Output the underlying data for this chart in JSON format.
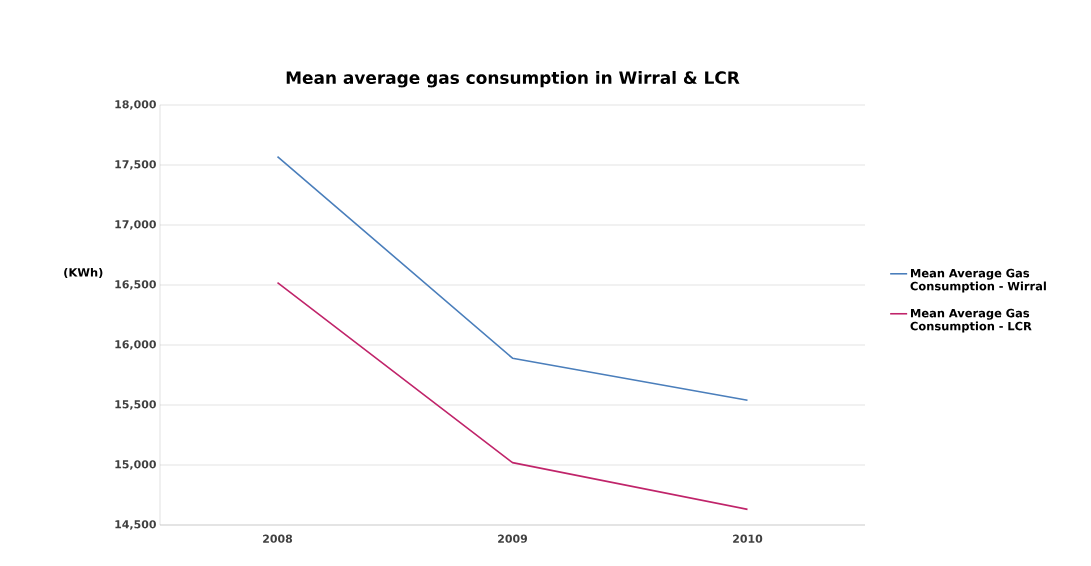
{
  "chart_data": {
    "type": "line",
    "title": "Mean average gas consumption in Wirral & LCR",
    "ylabel": "(KWh)",
    "categories": [
      "2008",
      "2009",
      "2010"
    ],
    "series": [
      {
        "name": "Mean Average Gas Consumption - Wirral",
        "color": "#4a7ebb",
        "values": [
          17570,
          15890,
          15540
        ]
      },
      {
        "name": "Mean Average Gas Consumption - LCR",
        "color": "#c0246a",
        "values": [
          16520,
          15020,
          14630
        ]
      }
    ],
    "ylim": [
      14500,
      18000
    ],
    "yticks": [
      {
        "value": 14500,
        "label": "14,500"
      },
      {
        "value": 15000,
        "label": "15,000"
      },
      {
        "value": 15500,
        "label": "15,500"
      },
      {
        "value": 16000,
        "label": "16,000"
      },
      {
        "value": 16500,
        "label": "16,500"
      },
      {
        "value": 17000,
        "label": "17,000"
      },
      {
        "value": 17500,
        "label": "17,500"
      },
      {
        "value": 18000,
        "label": "18,000"
      }
    ],
    "grid": "y",
    "legend": "right",
    "line_style": "solid"
  }
}
